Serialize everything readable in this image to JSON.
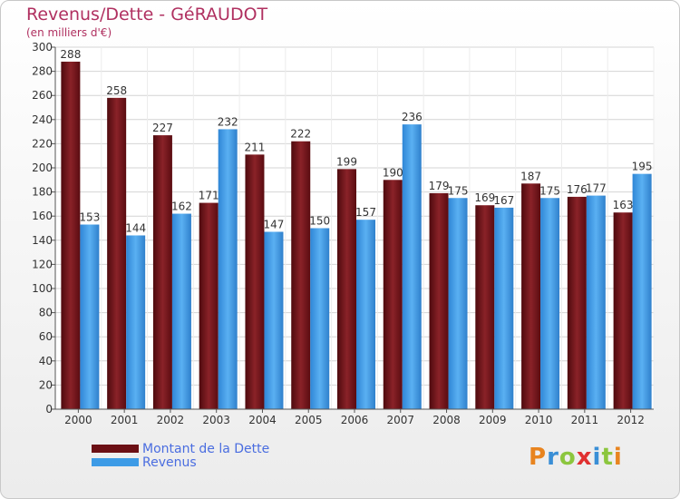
{
  "header": {
    "title": "Revenus/Dette - GéRAUDOT",
    "subtitle": "(en milliers d'€)"
  },
  "legend": {
    "items": [
      {
        "label": "Montant de la Dette",
        "color": "#6b0f14"
      },
      {
        "label": "Revenus",
        "color": "#3d9be6"
      }
    ]
  },
  "logo": {
    "text": "Proxiti",
    "letters": [
      "P",
      "r",
      "o",
      "x",
      "i",
      "t",
      "i"
    ],
    "colors": [
      "#e8841f",
      "#3a8fd6",
      "#8cc63e",
      "#e03030",
      "#3a8fd6",
      "#8cc63e",
      "#e8841f"
    ]
  },
  "chart_data": {
    "type": "bar",
    "title": "Revenus/Dette - GéRAUDOT",
    "ylabel": "(en milliers d'€)",
    "categories": [
      "2000",
      "2001",
      "2002",
      "2003",
      "2004",
      "2005",
      "2006",
      "2007",
      "2008",
      "2009",
      "2010",
      "2011",
      "2012"
    ],
    "series": [
      {
        "name": "Montant de la Dette",
        "color": "#6b0f14",
        "values": [
          288,
          258,
          227,
          171,
          211,
          222,
          199,
          190,
          179,
          169,
          187,
          176,
          163
        ]
      },
      {
        "name": "Revenus",
        "color": "#3d9be6",
        "values": [
          153,
          144,
          162,
          232,
          147,
          150,
          157,
          236,
          175,
          167,
          175,
          177,
          195
        ]
      }
    ],
    "ylim": [
      0,
      300
    ],
    "yticks": [
      0,
      20,
      40,
      60,
      80,
      100,
      120,
      140,
      160,
      180,
      200,
      220,
      240,
      260,
      280,
      300
    ],
    "grid": true,
    "legend_position": "bottom-left"
  }
}
